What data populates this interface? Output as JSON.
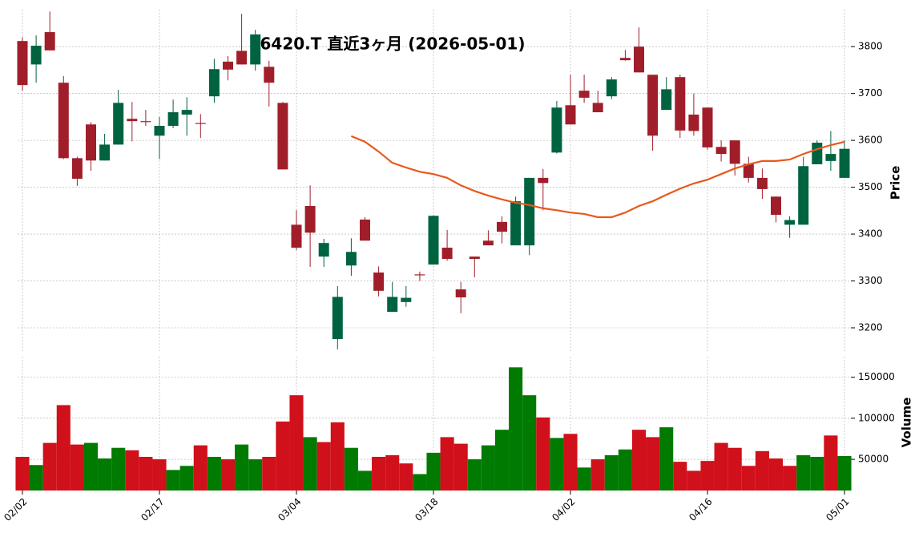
{
  "chart_data": {
    "type": "candlestick",
    "title": "6420.T  直近3ヶ月  (2026-05-01)",
    "categories": [
      "02/02",
      null,
      null,
      null,
      null,
      null,
      null,
      null,
      null,
      null,
      "02/17",
      null,
      null,
      null,
      null,
      null,
      null,
      null,
      null,
      null,
      "03/04",
      null,
      null,
      null,
      null,
      null,
      null,
      null,
      null,
      null,
      "03/18",
      null,
      null,
      null,
      null,
      null,
      null,
      null,
      null,
      null,
      "04/02",
      null,
      null,
      null,
      null,
      null,
      null,
      null,
      null,
      null,
      "04/16",
      null,
      null,
      null,
      null,
      null,
      null,
      null,
      null,
      null,
      "05/01"
    ],
    "open": [
      3812,
      3762,
      3831,
      3723,
      3562,
      3634,
      3557,
      3591,
      3646,
      3641,
      3610,
      3631,
      3655,
      3637,
      3694,
      3768,
      3791,
      3762,
      3757,
      3680,
      3420,
      3460,
      3352,
      3176,
      3333,
      3431,
      3318,
      3234,
      3255,
      3314,
      3335,
      3371,
      3282,
      3352,
      3386,
      3426,
      3376,
      3376,
      3520,
      3574,
      3675,
      3706,
      3680,
      3694,
      3776,
      3800,
      3740,
      3665,
      3735,
      3655,
      3670,
      3586,
      3600,
      3550,
      3520,
      3480,
      3420,
      3420,
      3549,
      3556,
      3520
    ],
    "high": [
      3820,
      3824,
      3875,
      3737,
      3565,
      3639,
      3614,
      3708,
      3682,
      3665,
      3650,
      3687,
      3692,
      3656,
      3774,
      3780,
      3870,
      3836,
      3770,
      3682,
      3451,
      3504,
      3390,
      3289,
      3391,
      3436,
      3331,
      3298,
      3289,
      3320,
      3440,
      3409,
      3298,
      3352,
      3408,
      3438,
      3480,
      3520,
      3539,
      3684,
      3740,
      3740,
      3706,
      3735,
      3793,
      3841,
      3740,
      3735,
      3740,
      3700,
      3670,
      3600,
      3600,
      3565,
      3540,
      3480,
      3438,
      3565,
      3600,
      3620,
      3600
    ],
    "low": [
      3706,
      3723,
      3792,
      3560,
      3503,
      3535,
      3557,
      3591,
      3598,
      3631,
      3560,
      3626,
      3610,
      3605,
      3680,
      3728,
      3762,
      3749,
      3672,
      3538,
      3366,
      3330,
      3330,
      3154,
      3311,
      3386,
      3267,
      3234,
      3245,
      3300,
      3335,
      3343,
      3231,
      3308,
      3376,
      3380,
      3376,
      3355,
      3451,
      3572,
      3634,
      3680,
      3660,
      3688,
      3770,
      3745,
      3578,
      3665,
      3605,
      3610,
      3580,
      3555,
      3525,
      3510,
      3475,
      3425,
      3392,
      3420,
      3549,
      3535,
      3520
    ],
    "close": [
      3718,
      3802,
      3792,
      3562,
      3518,
      3557,
      3591,
      3680,
      3641,
      3639,
      3631,
      3660,
      3665,
      3635,
      3752,
      3751,
      3762,
      3826,
      3723,
      3538,
      3371,
      3403,
      3381,
      3266,
      3362,
      3386,
      3279,
      3266,
      3264,
      3312,
      3439,
      3347,
      3265,
      3347,
      3376,
      3405,
      3470,
      3520,
      3509,
      3670,
      3634,
      3691,
      3660,
      3730,
      3771,
      3745,
      3610,
      3709,
      3621,
      3620,
      3585,
      3571,
      3550,
      3520,
      3496,
      3441,
      3430,
      3545,
      3595,
      3571,
      3582
    ],
    "up_color": "#006340",
    "down_color": "#a01e2a",
    "ylim": [
      3147,
      3879
    ],
    "yticks": [
      3200,
      3300,
      3400,
      3500,
      3600,
      3700,
      3800
    ],
    "ylabel": "Price",
    "grid": true,
    "moving_average": {
      "color": "#e8581b",
      "values": [
        null,
        null,
        null,
        null,
        null,
        null,
        null,
        null,
        null,
        null,
        null,
        null,
        null,
        null,
        null,
        null,
        null,
        null,
        null,
        null,
        null,
        null,
        null,
        null,
        3609,
        3597,
        3576,
        3552,
        3542,
        3533,
        3528,
        3520,
        3504,
        3492,
        3482,
        3474,
        3467,
        3462,
        3455,
        3451,
        3446,
        3443,
        3436,
        3436,
        3446,
        3460,
        3470,
        3484,
        3497,
        3508,
        3516,
        3528,
        3540,
        3549,
        3556,
        3556,
        3559,
        3571,
        3581,
        3590,
        3597
      ]
    },
    "volume": {
      "values": [
        53000,
        43000,
        70000,
        116000,
        68000,
        70000,
        51000,
        64000,
        61000,
        53000,
        50000,
        37000,
        42000,
        67000,
        53000,
        50000,
        68000,
        50000,
        53000,
        96000,
        128000,
        77000,
        71000,
        95000,
        64000,
        36000,
        53000,
        55000,
        45000,
        32000,
        58000,
        77000,
        69000,
        50000,
        67000,
        86000,
        162000,
        128000,
        101000,
        76000,
        81000,
        40000,
        50000,
        55000,
        62000,
        86000,
        77000,
        89000,
        47000,
        36000,
        48000,
        70000,
        64000,
        42000,
        60000,
        51000,
        42000,
        55000,
        53000,
        79000,
        54000
      ],
      "up_color": "#007a00",
      "down_color": "#d0101a",
      "ylim": [
        12000,
        175000
      ],
      "yticks": [
        50000,
        100000,
        150000
      ],
      "ylabel": "Volume"
    }
  }
}
